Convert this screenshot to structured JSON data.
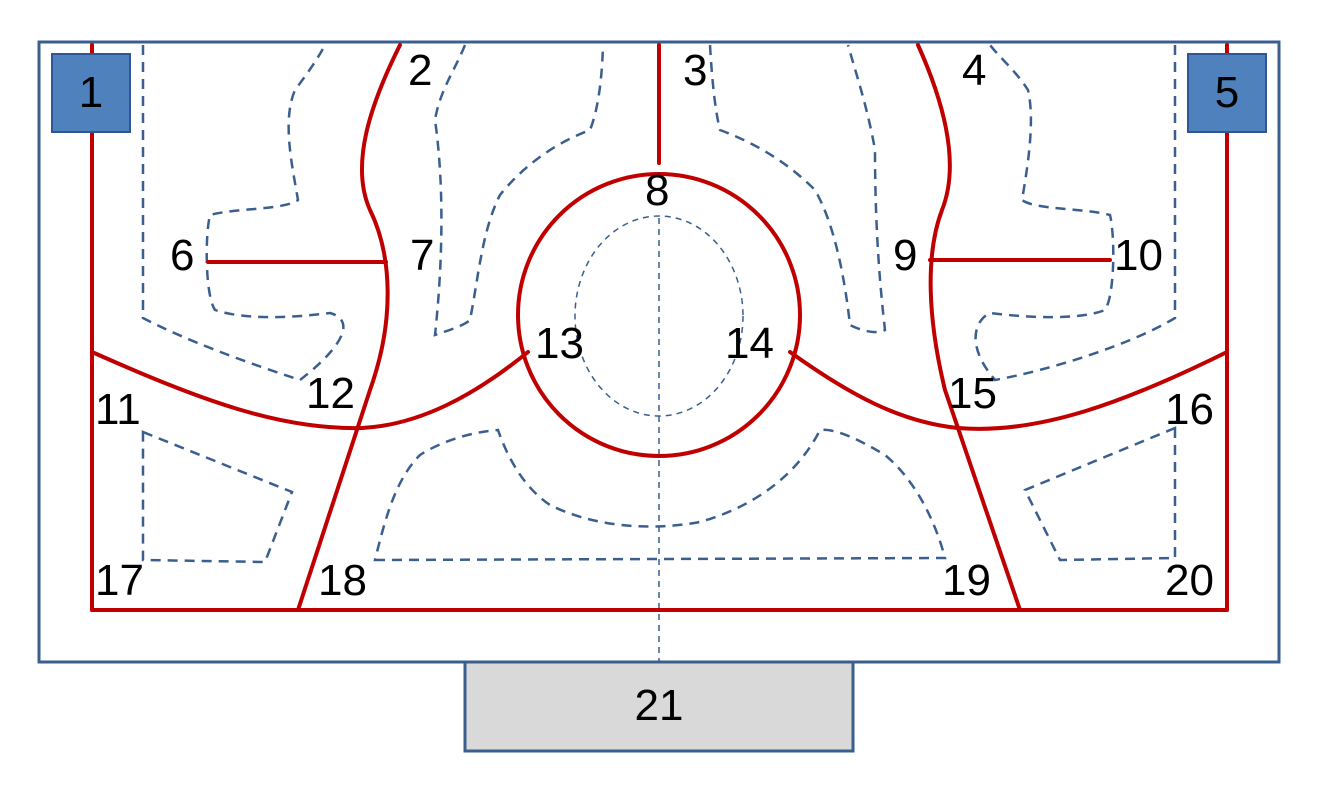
{
  "colors": {
    "boundary": "#c00000",
    "dashed": "#3a5f8f",
    "frame": "#3a5f8f",
    "corner_box_fill": "#4f81bd",
    "bottom_box_fill": "#d9d9d9"
  },
  "boxes": {
    "corner_left": "1",
    "corner_right": "5",
    "bottom": "21"
  },
  "labels": {
    "n2": "2",
    "n3": "3",
    "n4": "4",
    "n6": "6",
    "n7": "7",
    "n8": "8",
    "n9": "9",
    "n10": "10",
    "n11": "11",
    "n12": "12",
    "n13": "13",
    "n14": "14",
    "n15": "15",
    "n16": "16",
    "n17": "17",
    "n18": "18",
    "n19": "19",
    "n20": "20"
  }
}
